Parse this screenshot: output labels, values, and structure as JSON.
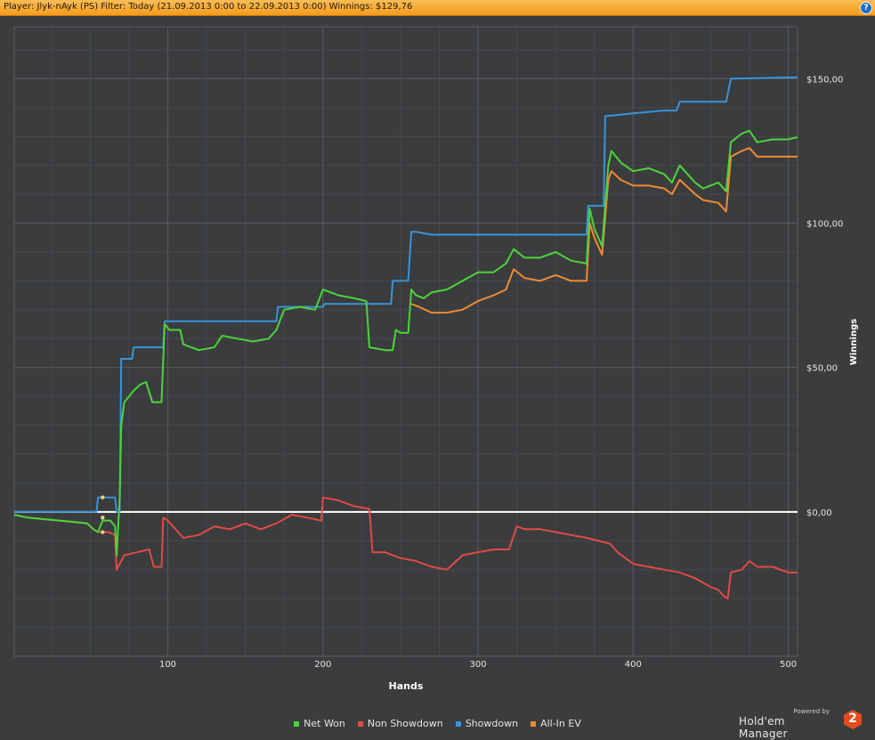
{
  "header": {
    "title": "Player: Jlyk-nAyk (PS) Filter: Today (21.09.2013 0:00 to 22.09.2013 0:00) Winnings: $129,76",
    "help_label": "?"
  },
  "brand": {
    "powered": "Powered by",
    "name": "Hold'em Manager",
    "logo_number": "2",
    "logo_color": "#e64a1e"
  },
  "colors": {
    "background": "#3a3c3e",
    "grid_major": "#5a5d60",
    "grid_minor": "#46494c",
    "zero_line": "#ffffff"
  },
  "chart_data": {
    "type": "line",
    "xlabel": "Hands",
    "ylabel": "Winnings",
    "xlim": [
      1,
      506
    ],
    "ylim": [
      -50,
      168
    ],
    "x_ticks": [
      100,
      200,
      300,
      400,
      500
    ],
    "y_ticks": [
      0,
      50,
      100,
      150
    ],
    "y_tick_labels": [
      "$0,00",
      "$50,00",
      "$100,00",
      "$150,00"
    ],
    "grid": true,
    "legend_position": "bottom-center",
    "series": [
      {
        "name": "Net Won",
        "color": "#4cd43a",
        "points": [
          [
            1,
            -1
          ],
          [
            10,
            -2
          ],
          [
            20,
            -2.5
          ],
          [
            30,
            -3
          ],
          [
            40,
            -3.5
          ],
          [
            48,
            -4
          ],
          [
            52,
            -6
          ],
          [
            55,
            -7
          ],
          [
            58,
            -3
          ],
          [
            63,
            -3
          ],
          [
            66,
            -5
          ],
          [
            67,
            -15
          ],
          [
            69,
            5
          ],
          [
            70,
            30
          ],
          [
            72,
            38
          ],
          [
            75,
            40
          ],
          [
            78,
            42
          ],
          [
            82,
            44
          ],
          [
            86,
            45
          ],
          [
            90,
            38
          ],
          [
            96,
            38
          ],
          [
            98,
            65
          ],
          [
            101,
            63
          ],
          [
            108,
            63
          ],
          [
            110,
            58
          ],
          [
            120,
            56
          ],
          [
            130,
            57
          ],
          [
            135,
            61
          ],
          [
            145,
            60
          ],
          [
            155,
            59
          ],
          [
            165,
            60
          ],
          [
            170,
            63
          ],
          [
            175,
            70
          ],
          [
            185,
            71
          ],
          [
            195,
            70
          ],
          [
            200,
            77
          ],
          [
            210,
            75
          ],
          [
            220,
            74
          ],
          [
            228,
            73
          ],
          [
            230,
            57
          ],
          [
            240,
            56
          ],
          [
            245,
            56
          ],
          [
            247,
            63
          ],
          [
            250,
            62
          ],
          [
            255,
            62
          ],
          [
            257,
            77
          ],
          [
            260,
            75
          ],
          [
            265,
            74
          ],
          [
            270,
            76
          ],
          [
            280,
            77
          ],
          [
            290,
            80
          ],
          [
            300,
            83
          ],
          [
            310,
            83
          ],
          [
            318,
            86
          ],
          [
            323,
            91
          ],
          [
            330,
            88
          ],
          [
            340,
            88
          ],
          [
            350,
            90
          ],
          [
            360,
            87
          ],
          [
            370,
            86
          ],
          [
            372,
            105
          ],
          [
            375,
            98
          ],
          [
            380,
            92
          ],
          [
            384,
            120
          ],
          [
            386,
            125
          ],
          [
            392,
            121
          ],
          [
            400,
            118
          ],
          [
            410,
            119
          ],
          [
            420,
            117
          ],
          [
            425,
            114
          ],
          [
            430,
            120
          ],
          [
            440,
            114
          ],
          [
            445,
            112
          ],
          [
            455,
            114
          ],
          [
            460,
            111
          ],
          [
            463,
            128
          ],
          [
            470,
            131
          ],
          [
            475,
            132
          ],
          [
            480,
            128
          ],
          [
            490,
            129
          ],
          [
            500,
            129
          ],
          [
            506,
            129.76
          ]
        ]
      },
      {
        "name": "Non Showdown",
        "color": "#e24a44",
        "points": [
          [
            1,
            -1
          ],
          [
            10,
            -2
          ],
          [
            20,
            -2.5
          ],
          [
            30,
            -3
          ],
          [
            40,
            -3.5
          ],
          [
            48,
            -4
          ],
          [
            52,
            -6
          ],
          [
            55,
            -7
          ],
          [
            58,
            -7
          ],
          [
            62,
            -7
          ],
          [
            66,
            -8
          ],
          [
            67,
            -20
          ],
          [
            72,
            -15
          ],
          [
            80,
            -14
          ],
          [
            88,
            -13
          ],
          [
            91,
            -19
          ],
          [
            96,
            -19
          ],
          [
            97,
            -2
          ],
          [
            100,
            -3
          ],
          [
            110,
            -9
          ],
          [
            120,
            -8
          ],
          [
            130,
            -5
          ],
          [
            140,
            -6
          ],
          [
            150,
            -4
          ],
          [
            160,
            -6
          ],
          [
            170,
            -4
          ],
          [
            180,
            -1
          ],
          [
            190,
            -2
          ],
          [
            199,
            -3
          ],
          [
            200,
            5
          ],
          [
            210,
            4
          ],
          [
            220,
            2
          ],
          [
            230,
            1
          ],
          [
            232,
            -14
          ],
          [
            240,
            -14
          ],
          [
            250,
            -16
          ],
          [
            260,
            -17
          ],
          [
            270,
            -19
          ],
          [
            280,
            -20
          ],
          [
            290,
            -15
          ],
          [
            300,
            -14
          ],
          [
            310,
            -13
          ],
          [
            320,
            -13
          ],
          [
            325,
            -5
          ],
          [
            330,
            -6
          ],
          [
            340,
            -6
          ],
          [
            350,
            -7
          ],
          [
            360,
            -8
          ],
          [
            370,
            -9
          ],
          [
            385,
            -11
          ],
          [
            390,
            -14
          ],
          [
            400,
            -18
          ],
          [
            410,
            -19
          ],
          [
            420,
            -20
          ],
          [
            430,
            -21
          ],
          [
            435,
            -22
          ],
          [
            440,
            -23
          ],
          [
            450,
            -26
          ],
          [
            455,
            -27
          ],
          [
            458,
            -29
          ],
          [
            461,
            -30
          ],
          [
            463,
            -21
          ],
          [
            470,
            -20
          ],
          [
            475,
            -17
          ],
          [
            480,
            -19
          ],
          [
            490,
            -19
          ],
          [
            500,
            -21
          ],
          [
            506,
            -21
          ]
        ]
      },
      {
        "name": "Showdown",
        "color": "#3a93d8",
        "points": [
          [
            1,
            0
          ],
          [
            54,
            0
          ],
          [
            55,
            5
          ],
          [
            66,
            5
          ],
          [
            67,
            0
          ],
          [
            69,
            0
          ],
          [
            70,
            53
          ],
          [
            77,
            53
          ],
          [
            78,
            57
          ],
          [
            97,
            57
          ],
          [
            98,
            66
          ],
          [
            170,
            66
          ],
          [
            171,
            71
          ],
          [
            200,
            71
          ],
          [
            201,
            72
          ],
          [
            244,
            72
          ],
          [
            245,
            80
          ],
          [
            255,
            80
          ],
          [
            257,
            97
          ],
          [
            260,
            97
          ],
          [
            270,
            96
          ],
          [
            300,
            96
          ],
          [
            320,
            96
          ],
          [
            330,
            96
          ],
          [
            370,
            96
          ],
          [
            371,
            106
          ],
          [
            381,
            106
          ],
          [
            382,
            137
          ],
          [
            400,
            138
          ],
          [
            420,
            139
          ],
          [
            428,
            139
          ],
          [
            430,
            142
          ],
          [
            460,
            142
          ],
          [
            463,
            150
          ],
          [
            506,
            150.5
          ]
        ]
      },
      {
        "name": "All-In EV",
        "color": "#f08a32",
        "points": [
          [
            257,
            72
          ],
          [
            262,
            71
          ],
          [
            270,
            69
          ],
          [
            280,
            69
          ],
          [
            290,
            70
          ],
          [
            300,
            73
          ],
          [
            310,
            75
          ],
          [
            318,
            77
          ],
          [
            323,
            84
          ],
          [
            330,
            81
          ],
          [
            340,
            80
          ],
          [
            350,
            82
          ],
          [
            360,
            80
          ],
          [
            370,
            80
          ],
          [
            372,
            100
          ],
          [
            375,
            95
          ],
          [
            380,
            89
          ],
          [
            384,
            115
          ],
          [
            386,
            118
          ],
          [
            392,
            115
          ],
          [
            400,
            113
          ],
          [
            410,
            113
          ],
          [
            420,
            112
          ],
          [
            425,
            110
          ],
          [
            430,
            115
          ],
          [
            440,
            110
          ],
          [
            445,
            108
          ],
          [
            455,
            107
          ],
          [
            460,
            104
          ],
          [
            463,
            123
          ],
          [
            470,
            125
          ],
          [
            475,
            126
          ],
          [
            480,
            123
          ],
          [
            490,
            123
          ],
          [
            500,
            123
          ],
          [
            506,
            123
          ]
        ]
      }
    ],
    "markers": [
      {
        "x": 58,
        "y": 5,
        "color": "#f3d36b"
      },
      {
        "x": 58,
        "y": -2,
        "color": "#f3d36b"
      },
      {
        "x": 58,
        "y": -7,
        "color": "#f3d36b"
      }
    ]
  }
}
